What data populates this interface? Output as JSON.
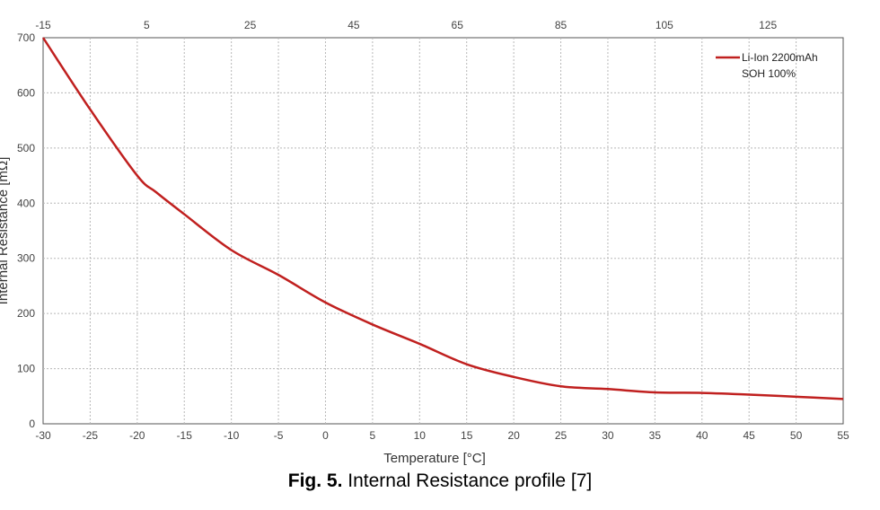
{
  "chart_data": {
    "type": "line",
    "xlabel": "Temperature [°C]",
    "ylabel": "Internal Resistance [mΩ]",
    "xlim": [
      -30,
      55
    ],
    "ylim": [
      0,
      700
    ],
    "x_ticks": [
      "-30",
      "-25",
      "-20",
      "-15",
      "-10",
      "-5",
      "0",
      "5",
      "10",
      "15",
      "20",
      "25",
      "30",
      "35",
      "40",
      "45",
      "50",
      "55"
    ],
    "y_ticks": [
      "0",
      "100",
      "200",
      "300",
      "400",
      "500",
      "600",
      "700"
    ],
    "secondary_x_ticks": [
      "-15",
      "5",
      "25",
      "45",
      "65",
      "85",
      "105",
      "125"
    ],
    "grid": true,
    "legend_position": "top-right",
    "legend": [
      "Li-Ion 2200mAh",
      "SOH 100%"
    ],
    "series": [
      {
        "name": "Li-Ion 2200mAh",
        "color": "#c0201f",
        "x": [
          -30,
          -25,
          -20,
          -18,
          -15,
          -10,
          -5,
          0,
          5,
          10,
          15,
          20,
          25,
          30,
          35,
          40,
          45,
          50,
          55
        ],
        "y": [
          700,
          570,
          450,
          420,
          380,
          315,
          270,
          220,
          180,
          145,
          108,
          85,
          68,
          63,
          57,
          56,
          53,
          49,
          45
        ]
      }
    ]
  },
  "caption": {
    "label": "Fig. 5.",
    "text": " Internal Resistance profile [7]"
  }
}
